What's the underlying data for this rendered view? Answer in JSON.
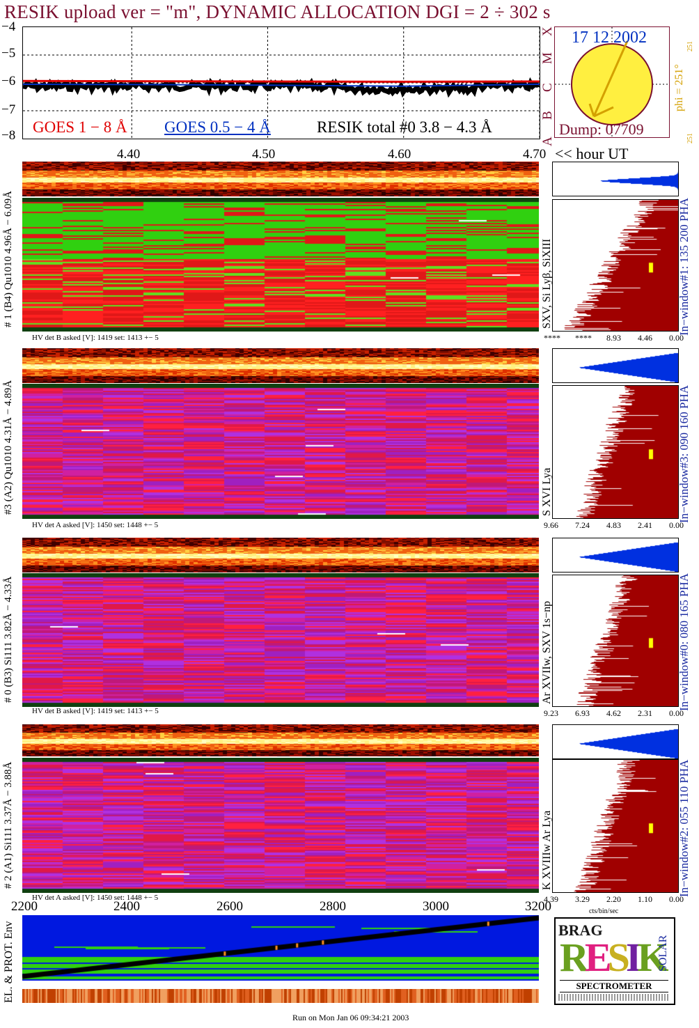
{
  "title": "RESIK upload ver = \"m\", DYNAMIC ALLOCATION  DGI =   2 ÷ 302 s",
  "top_panel": {
    "y_ticks": [
      "−4",
      "−5",
      "−6",
      "−7",
      "−8"
    ],
    "goes_long": "GOES 1 − 8 Å",
    "goes_short": "GOES 0.5 − 4 Å",
    "resik_total": "RESIK total #0  3.8 − 4.3 Å",
    "class_letters": [
      "X",
      "M",
      "C",
      "B",
      "A"
    ],
    "hour_ticks": [
      "4.40",
      "4.50",
      "4.60",
      "4.70"
    ],
    "hour_label": "<< hour UT"
  },
  "sun": {
    "date": "17 12 2002",
    "dump": "Dump: 07709",
    "phi": "phi = 251°",
    "phi_sup": "251",
    "phi_bottom": "251"
  },
  "colors": {
    "goes_long": "#e00000",
    "goes_short": "#0030c0",
    "title": "#7a1030",
    "pha_fill": "#a00000",
    "pha_top": "#0030e0",
    "label_blue": "#1a2aa0"
  },
  "chart_data": {
    "type": "line",
    "title": "RESIK upload ver = \"m\", DYNAMIC ALLOCATION  DGI =   2 ÷ 302 s",
    "xlabel": "<< hour UT",
    "x_ticks": [
      4.4,
      4.5,
      4.6,
      4.7
    ],
    "ylim": [
      -8,
      -4
    ],
    "series": [
      {
        "name": "GOES 1 − 8 Å",
        "x": [
          4.32,
          4.4,
          4.5,
          4.6,
          4.7
        ],
        "y": [
          -5.93,
          -5.94,
          -5.95,
          -5.96,
          -5.95
        ]
      },
      {
        "name": "GOES 0.5 − 4 Å",
        "x": [
          4.32,
          4.4,
          4.5,
          4.6,
          4.7
        ],
        "y": [
          -6.05,
          -6.06,
          -6.08,
          -6.12,
          -6.05
        ]
      }
    ]
  },
  "channels": [
    {
      "id": "ch1",
      "side_label": "# 1 (B4) Qu1010 4.96Å − 6.09Å",
      "lines": "SXV, Si Lyβ, SiXIII",
      "hv": "HV det B asked [V]:  1419 set:  1413 +−    5",
      "pha_ticks": [
        "****",
        "****",
        "8.93",
        "4.46",
        "0.00"
      ],
      "window": "In−window#1:  135 200 PHA"
    },
    {
      "id": "ch3",
      "side_label": "#3 (A2) Qu1010  4.31Å − 4.89Å",
      "lines": "S XVI Lya",
      "hv": "HV det A asked [V]:  1450 set:  1448 +−    5",
      "pha_ticks": [
        "9.66",
        "7.24",
        "4.83",
        "2.41",
        "0.00"
      ],
      "window": "In−window#3:  090 160 PHA"
    },
    {
      "id": "ch0",
      "side_label": "# 0 (B3) Si111  3.82Å − 4.33Å",
      "lines": "Ar XVIIw, SXV 1s−np",
      "hv": "HV det B asked [V]:  1419 set:  1413 +−    5",
      "pha_ticks": [
        "9.23",
        "6.93",
        "4.62",
        "2.31",
        "0.00"
      ],
      "window": "In−window#0:  080 165 PHA"
    },
    {
      "id": "ch2",
      "side_label": "# 2 (A1) Si111  3.37Å − 3.88Å",
      "lines": "K XVIIIw  Ar Lya",
      "hv": "HV det A asked [V]:  1450 set:  1448 +−    5",
      "pha_ticks": [
        "4.39",
        "3.29",
        "2.20",
        "1.10",
        "0.00"
      ],
      "window": "In−window#2:  055 110 PHA"
    }
  ],
  "pha_unit": "cts/bin/sec",
  "bottom": {
    "x_ticks": [
      "2200",
      "2400",
      "2600",
      "2800",
      "3000",
      "3200"
    ],
    "env_label": "EL. & PROT. Env"
  },
  "logo": {
    "letters": "RESIK",
    "small": "BRAG",
    "solar": "SOLAR",
    "caption": "SPECTROMETER"
  },
  "footer": "Run on Mon Jan 06 09:34:21 2003"
}
